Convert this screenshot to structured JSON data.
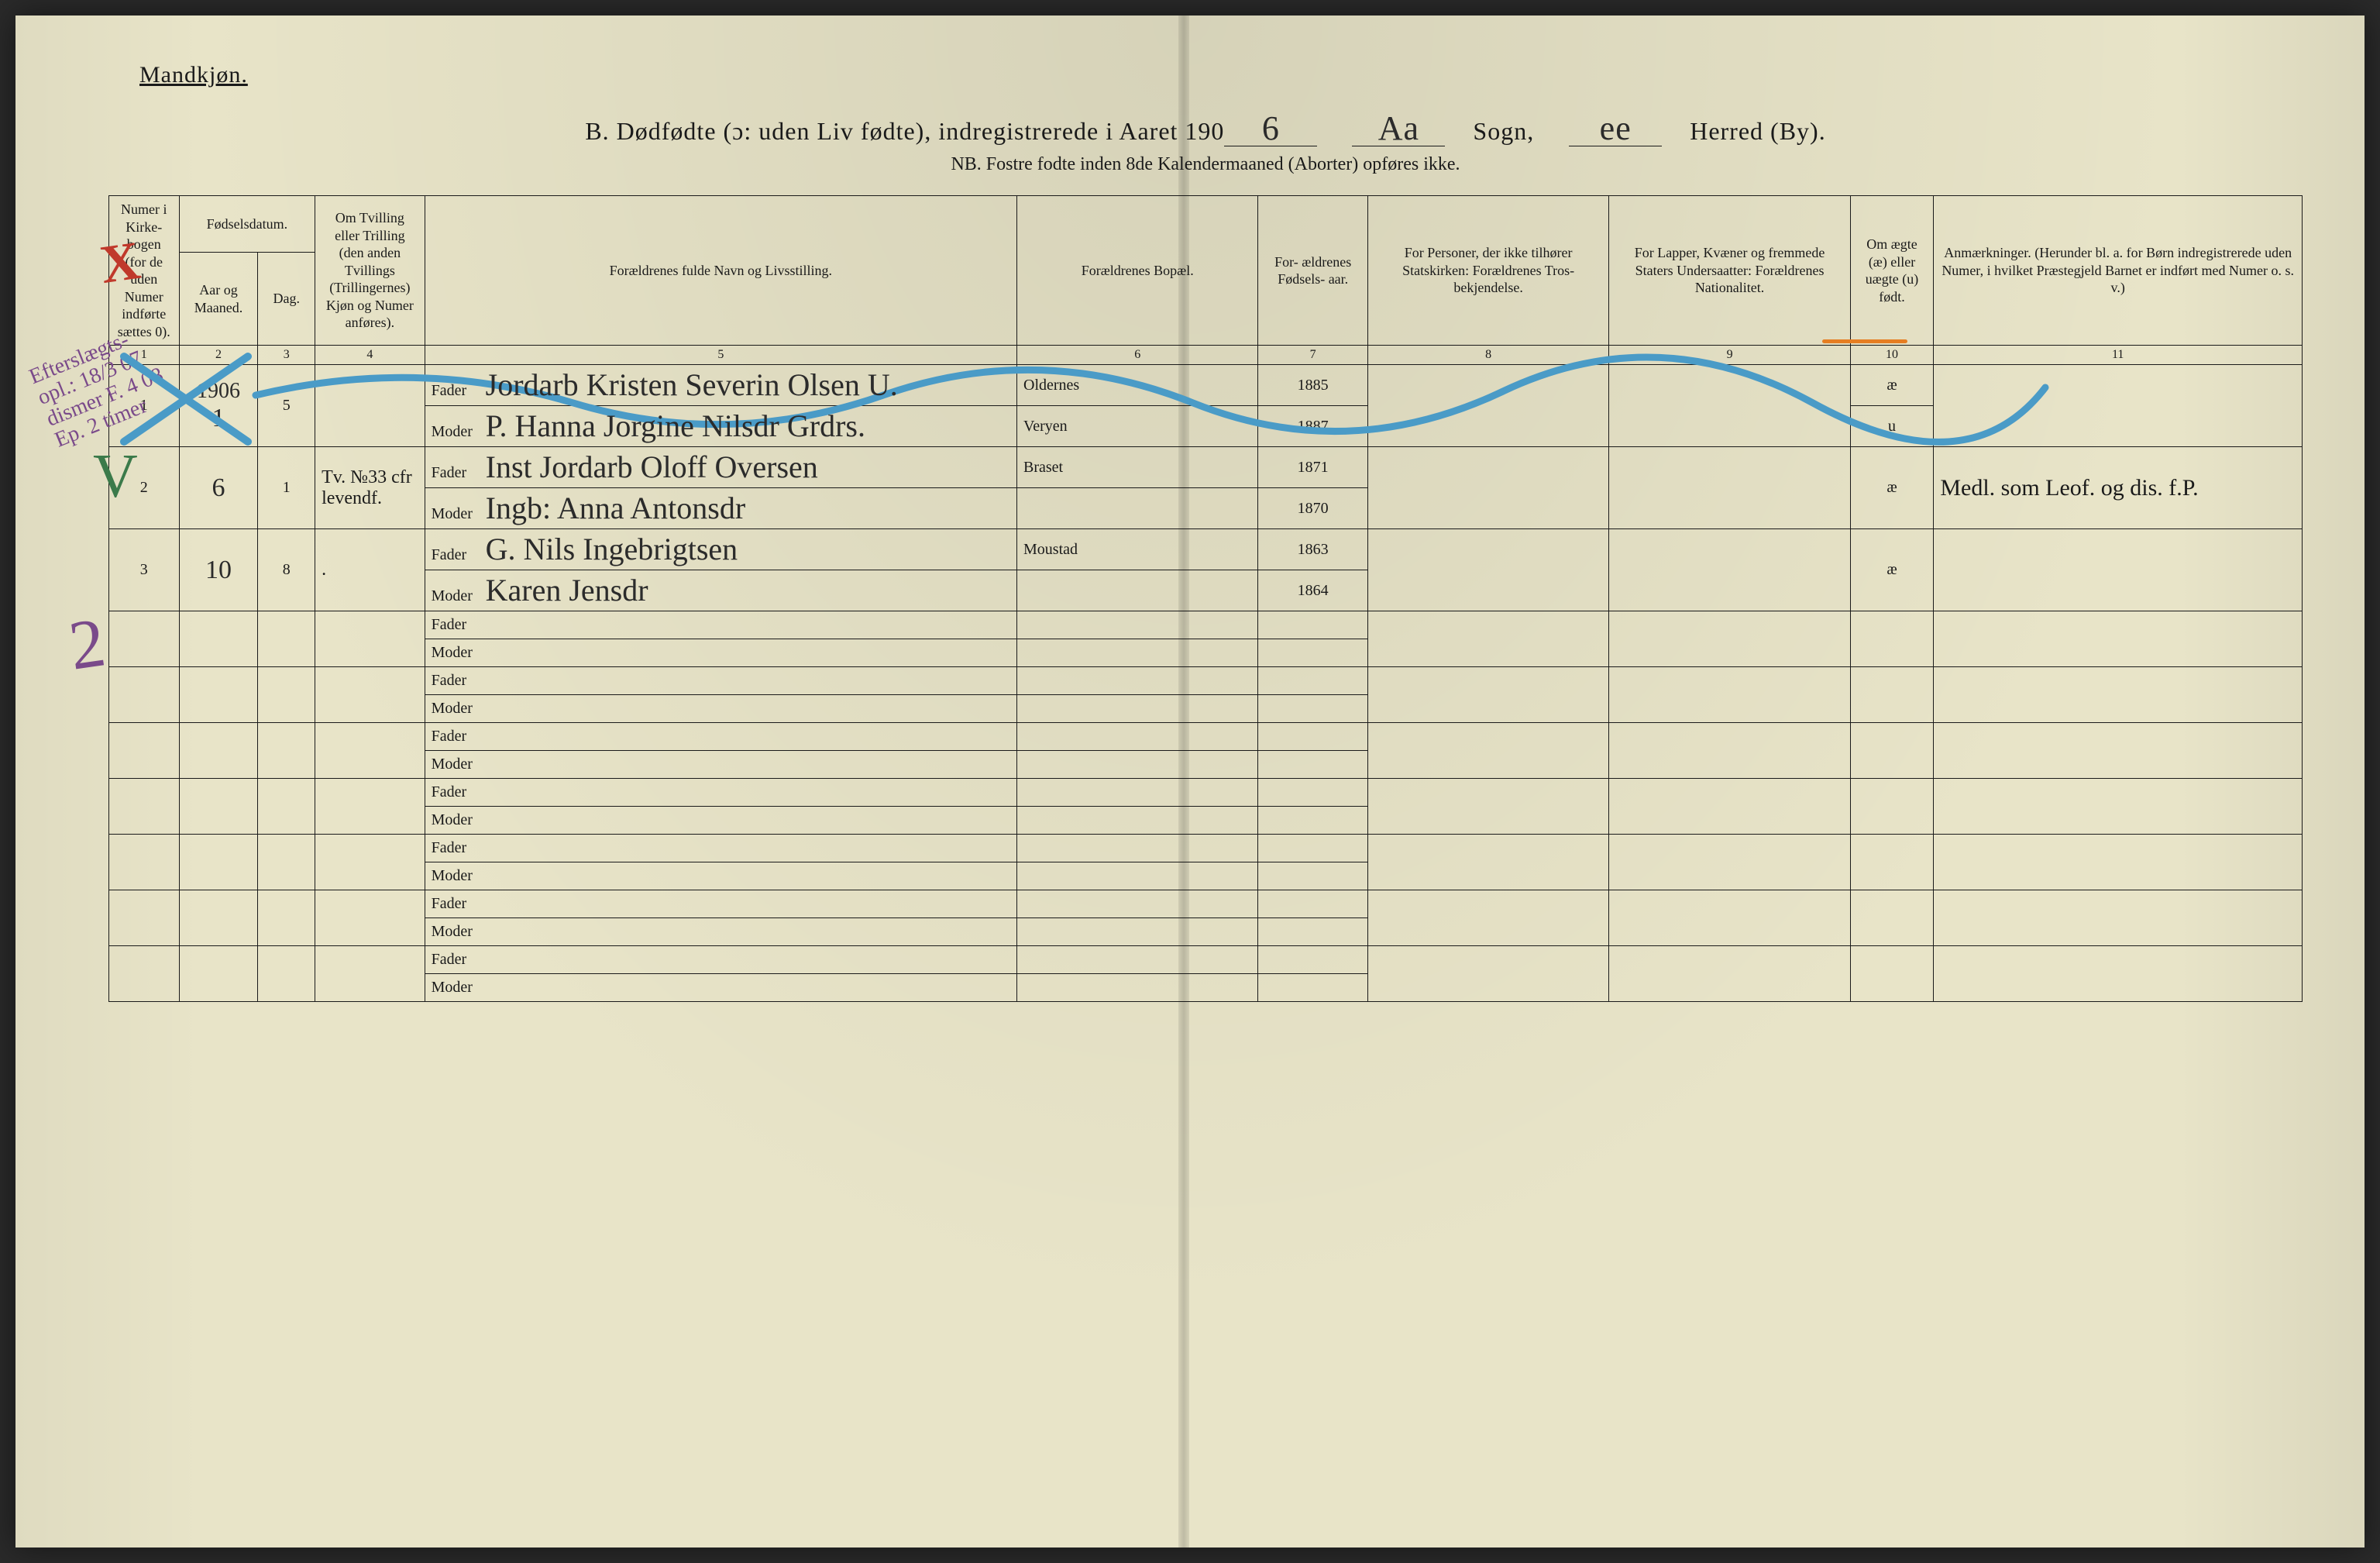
{
  "header": {
    "gender_label": "Mandkjøn.",
    "title_prefix": "B.  Dødfødte (ɔ: uden Liv fødte), indregistrerede i Aaret 190",
    "year_suffix": "6",
    "sogn_label": "Sogn,",
    "sogn_value": "Aa",
    "herred_label": "Herred (By).",
    "herred_value": "ee",
    "nb": "NB.  Fostre fodte inden 8de Kalendermaaned (Aborter) opføres ikke."
  },
  "columns": {
    "c1": "Numer i Kirke- bogen (for de uden Numer indførte sættes 0).",
    "c2_group": "Fødselsdatum.",
    "c2a": "Aar og Maaned.",
    "c2b": "Dag.",
    "c4": "Om Tvilling eller Trilling (den anden Tvillings (Trillingernes) Kjøn og Numer anføres).",
    "c5": "Forældrenes fulde Navn og Livsstilling.",
    "c6": "Forældrenes Bopæl.",
    "c7": "For- ældrenes Fødsels- aar.",
    "c8": "For Personer, der ikke tilhører Statskirken: Forældrenes Tros- bekjendelse.",
    "c9": "For Lapper, Kvæner og fremmede Staters Undersaatter: Forældrenes Nationalitet.",
    "c10": "Om ægte (æ) eller uægte (u) født.",
    "c11": "Anmærkninger. (Herunder bl. a. for Børn indregistrerede uden Numer, i hvilket Præstegjeld Barnet er indført med Numer o. s. v.)",
    "nums": [
      "1",
      "2",
      "3",
      "4",
      "5",
      "6",
      "7",
      "8",
      "9",
      "10",
      "11"
    ]
  },
  "role_labels": {
    "father": "Fader",
    "mother": "Moder"
  },
  "rows": [
    {
      "num": "1",
      "year_top": "1906",
      "month": "1",
      "day": "5",
      "tvilling": "",
      "father_name": "Jordarb Kristen Severin Olsen   U.",
      "mother_name": "P. Hanna Jorgine Nilsdr   Grdrs.",
      "father_bopael": "Oldernes",
      "mother_bopael": "Veryen",
      "father_aar": "1885",
      "mother_aar": "1887",
      "c8": "",
      "c9": "",
      "aegte_f": "æ",
      "aegte_m": "u",
      "notes": ""
    },
    {
      "num": "2",
      "month": "6",
      "day": "1",
      "tvilling": "Tv. №33 cfr levendf.",
      "father_name": "Inst Jordarb Oloff Oversen",
      "mother_name": "Ingb: Anna Antonsdr",
      "father_bopael": "Braset",
      "mother_bopael": "",
      "father_aar": "1871",
      "mother_aar": "1870",
      "c8": "",
      "c9": "",
      "aegte": "æ",
      "notes": "Medl. som Leof. og dis. f.P."
    },
    {
      "num": "3",
      "month": "10",
      "day": "8",
      "tvilling": ".",
      "father_name": "G. Nils Ingebrigtsen",
      "mother_name": "Karen Jensdr",
      "father_bopael": "Moustad",
      "mother_bopael": "",
      "father_aar": "1863",
      "mother_aar": "1864",
      "c8": "",
      "c9": "",
      "aegte": "æ",
      "notes": ""
    }
  ],
  "empty_rows": 7,
  "marginalia": {
    "note1": "Efterslægts-opl.: 18/3 07 dismer F. 4 08 Ep. 2 timer",
    "big2": "2",
    "red_x": "X",
    "green_check": "V"
  },
  "styling": {
    "page_bg": "#e8e4c8",
    "ink": "#1a1a1a",
    "handwriting_color": "#2b2b2b",
    "purple_ink": "#7a4a8a",
    "red_ink": "#c0392b",
    "green_ink": "#3b7a4a",
    "orange_ink": "#e67e22",
    "blue_pencil": "#4a9bc7",
    "header_fontsize_pt": 24,
    "body_fontsize_pt": 15,
    "hw_fontsize_pt": 30,
    "border_color": "#1a1a1a",
    "col_widths_pct": [
      3.2,
      3.6,
      2.6,
      5,
      27,
      11,
      5,
      11,
      11,
      3.8,
      16.8
    ]
  }
}
